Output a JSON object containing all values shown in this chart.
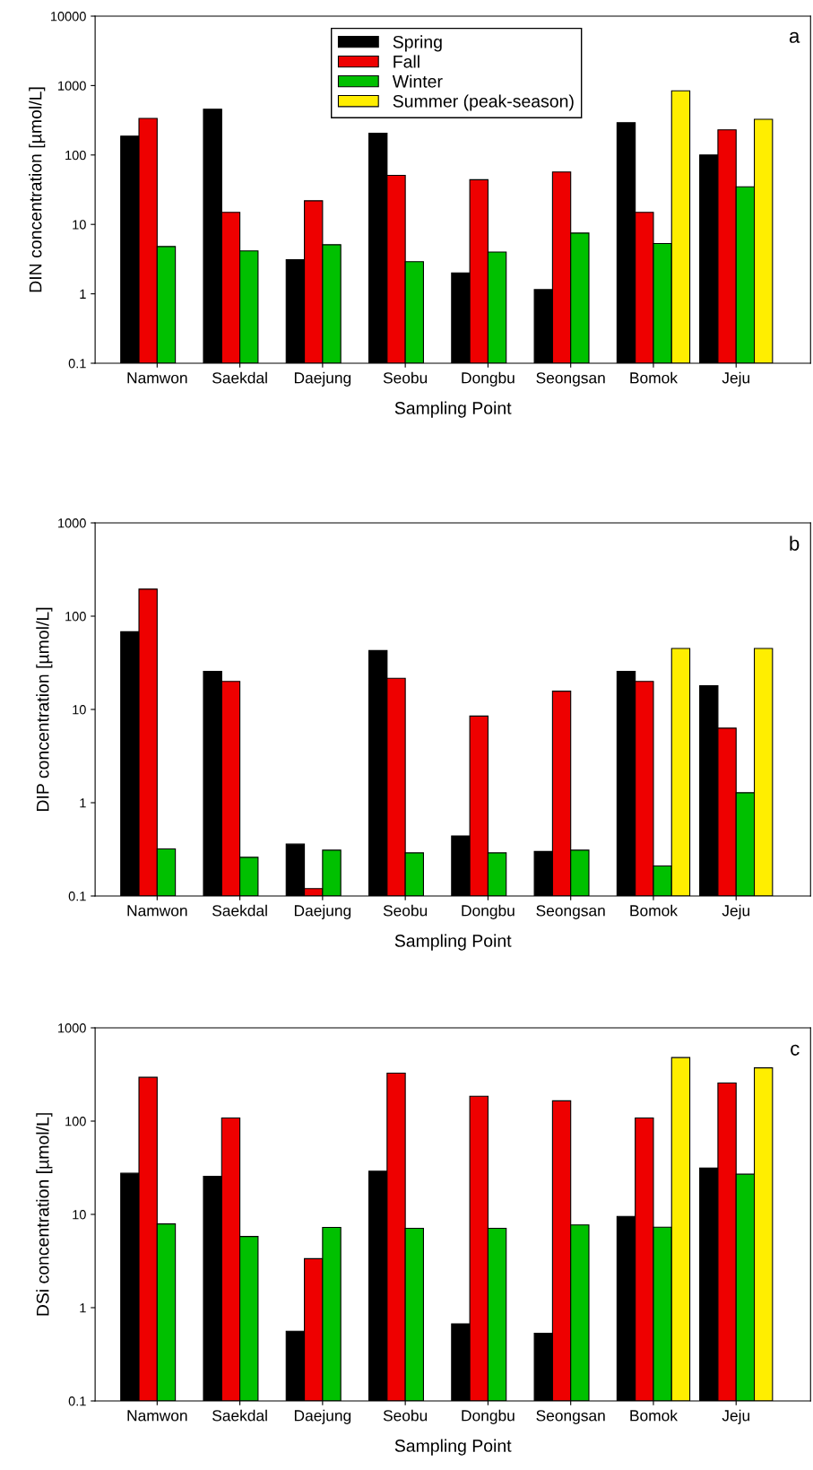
{
  "chart_data": [
    {
      "type": "bar",
      "ylabel": "DIN concentration [µmol/L]",
      "xlabel": "Sampling Point",
      "categories": [
        "Namwon",
        "Saekdal",
        "Daejung",
        "Seobu",
        "Dongbu",
        "Seongsan",
        "Bomok",
        "Jeju"
      ],
      "series": [
        {
          "name": "Spring",
          "color": "#000000",
          "values": [
            187,
            457,
            3.1,
            205,
            2.0,
            1.15,
            292,
            100
          ]
        },
        {
          "name": "Fall",
          "color": "#ee0000",
          "values": [
            336,
            14.9,
            21.9,
            51,
            44,
            57,
            14.9,
            230
          ]
        },
        {
          "name": "Winter",
          "color": "#00c000",
          "values": [
            4.8,
            4.15,
            5.1,
            2.9,
            4.0,
            7.5,
            5.3,
            34.8
          ]
        },
        {
          "name": "Summer (peak-season)",
          "color": "#ffee00",
          "values": [
            null,
            null,
            null,
            null,
            null,
            null,
            839,
            327
          ]
        }
      ],
      "log": true,
      "ylim": [
        0.1,
        10000
      ],
      "yticks": [
        0.1,
        1,
        10,
        100,
        1000,
        10000
      ],
      "legend": "top",
      "grid": false,
      "annotations": [
        "a"
      ]
    },
    {
      "type": "bar",
      "ylabel": "DIP concentration [µmol/L]",
      "xlabel": "Sampling Point",
      "categories": [
        "Namwon",
        "Saekdal",
        "Daejung",
        "Seobu",
        "Dongbu",
        "Seongsan",
        "Bomok",
        "Jeju"
      ],
      "series": [
        {
          "color": "#000000",
          "values": [
            68,
            25.6,
            0.36,
            42.8,
            0.44,
            0.3,
            25.6,
            18
          ]
        },
        {
          "color": "#ee0000",
          "values": [
            195,
            20,
            0.12,
            21.6,
            8.5,
            15.7,
            20,
            6.3
          ]
        },
        {
          "color": "#00c000",
          "values": [
            0.32,
            0.26,
            0.31,
            0.29,
            0.29,
            0.31,
            0.21,
            1.28
          ]
        },
        {
          "color": "#ffee00",
          "values": [
            null,
            null,
            null,
            null,
            null,
            null,
            45,
            45
          ]
        }
      ],
      "log": true,
      "ylim": [
        0.1,
        1000
      ],
      "yticks": [
        0.1,
        1,
        10,
        100,
        1000
      ],
      "legend": false,
      "grid": false,
      "annotations": [
        "b"
      ]
    },
    {
      "type": "bar",
      "ylabel": "DSi concentration [µmol/L]",
      "xlabel": "Sampling Point",
      "categories": [
        "Namwon",
        "Saekdal",
        "Daejung",
        "Seobu",
        "Dongbu",
        "Seongsan",
        "Bomok",
        "Jeju"
      ],
      "series": [
        {
          "color": "#000000",
          "values": [
            27.6,
            25.6,
            0.56,
            29,
            0.67,
            0.53,
            9.5,
            31.4
          ]
        },
        {
          "color": "#ee0000",
          "values": [
            295,
            108,
            3.35,
            327,
            185,
            165,
            108,
            256
          ]
        },
        {
          "color": "#00c000",
          "values": [
            7.9,
            5.8,
            7.25,
            7.1,
            7.1,
            7.7,
            7.3,
            27
          ]
        },
        {
          "color": "#ffee00",
          "values": [
            null,
            null,
            null,
            null,
            null,
            null,
            480,
            372
          ]
        }
      ],
      "log": true,
      "ylim": [
        0.1,
        1000
      ],
      "yticks": [
        0.1,
        1,
        10,
        100,
        1000
      ],
      "legend": false,
      "grid": false,
      "annotations": [
        "c"
      ]
    }
  ]
}
